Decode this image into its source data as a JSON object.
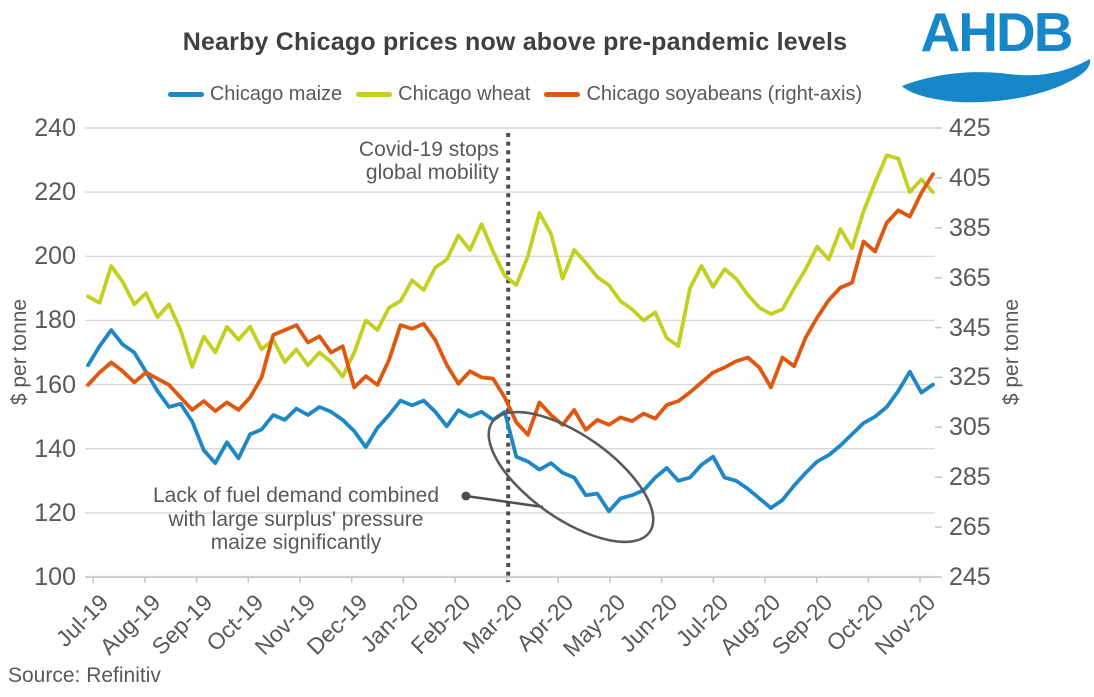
{
  "title": "Nearby Chicago prices now above pre-pandemic levels",
  "logo": {
    "text": "AHDB",
    "color": "#1787c8"
  },
  "legend": {
    "items": [
      {
        "label": "Chicago maize",
        "color": "#1e87c5"
      },
      {
        "label": "Chicago wheat",
        "color": "#c3d021"
      },
      {
        "label": "Chicago soyabeans (right-axis)",
        "color": "#e0570f"
      }
    ]
  },
  "axes": {
    "left": {
      "title": "$ per tonne",
      "ticks": [
        240,
        220,
        200,
        180,
        160,
        140,
        120,
        100
      ]
    },
    "right": {
      "title": "$ per tonne",
      "ticks": [
        425,
        405,
        385,
        365,
        345,
        325,
        305,
        285,
        265,
        245
      ]
    },
    "x": {
      "labels": [
        "Jul-19",
        "Aug-19",
        "Sep-19",
        "Oct-19",
        "Nov-19",
        "Dec-19",
        "Jan-20",
        "Feb-20",
        "Mar-20",
        "Apr-20",
        "May-20",
        "Jun-20",
        "Jul-20",
        "Aug-20",
        "Sep-20",
        "Oct-20",
        "Nov-20"
      ]
    }
  },
  "annotations": {
    "covid": {
      "line1": "Covid-19 stops",
      "line2": "global mobility"
    },
    "fuel": {
      "line1": "Lack of fuel demand combined",
      "line2": "with large surplus' pressure",
      "line3": "maize significantly"
    }
  },
  "source": "Source: Refinitiv",
  "chart_data": {
    "type": "line",
    "title": "Nearby Chicago prices now above pre-pandemic levels",
    "x_unit": "weekly observations",
    "x_range": [
      "Jul-19",
      "Nov-20"
    ],
    "left_axis": {
      "label": "$ per tonne",
      "min": 100,
      "max": 240,
      "tick_step": 20
    },
    "right_axis": {
      "label": "$ per tonne",
      "min": 245,
      "max": 425,
      "tick_step": 20
    },
    "grid": "horizontal",
    "legend_position": "top",
    "covid_line_week": 36.3,
    "series": [
      {
        "name": "Chicago maize",
        "axis": "left",
        "color": "#1e87c5",
        "values": [
          166,
          172,
          177,
          172.5,
          170,
          164,
          158,
          153,
          154,
          148.5,
          139.5,
          135.5,
          142,
          137,
          144.5,
          146,
          150.5,
          149,
          152.5,
          150.5,
          153,
          151.5,
          149,
          145.5,
          140.5,
          146.5,
          150.5,
          155,
          153.5,
          155,
          151.5,
          147,
          152,
          150,
          151.5,
          149,
          151.5,
          137.5,
          136,
          133.5,
          135.5,
          132.5,
          131,
          125.5,
          126,
          120.5,
          124.5,
          125.5,
          127,
          131,
          134,
          130,
          131,
          135,
          137.5,
          131,
          130,
          127.5,
          124.5,
          121.5,
          124,
          128.5,
          132.5,
          136,
          138,
          141,
          144.5,
          148,
          150,
          153,
          158,
          164,
          157.5,
          160
        ]
      },
      {
        "name": "Chicago wheat",
        "axis": "left",
        "color": "#c3d021",
        "values": [
          187.5,
          185.5,
          197,
          192,
          185,
          188.5,
          181,
          185,
          177,
          165.5,
          175,
          170,
          178,
          174,
          178,
          171,
          174,
          167,
          171,
          166,
          170,
          167,
          162.5,
          170,
          180,
          177,
          184,
          186,
          192.5,
          189.5,
          196.5,
          199,
          206.5,
          202,
          210,
          201.5,
          194,
          191,
          200,
          213.5,
          207,
          193,
          202,
          198,
          193.5,
          191,
          186,
          183.5,
          180,
          182.5,
          174.5,
          172,
          190,
          197,
          190.5,
          196,
          193,
          188,
          184,
          182,
          183.5,
          190,
          196,
          203,
          199,
          208.5,
          202.5,
          214,
          223,
          231.5,
          230.5,
          220,
          224,
          220
        ]
      },
      {
        "name": "Chicago soyabeans",
        "axis": "right",
        "color": "#e0570f",
        "values": [
          322,
          327,
          331,
          327.5,
          323,
          327,
          324.5,
          322,
          317,
          312,
          315.5,
          311.5,
          315,
          312,
          317,
          325,
          342,
          344,
          346,
          339,
          341.5,
          335,
          337.5,
          321,
          325.5,
          322,
          332,
          346,
          344.5,
          346.5,
          340,
          330,
          322.5,
          327.5,
          325,
          324.5,
          317,
          307,
          302,
          315,
          310,
          306,
          312,
          304,
          308,
          306,
          309,
          307.5,
          310.5,
          308.5,
          314,
          315.5,
          319,
          323,
          327,
          329,
          331.5,
          333,
          329,
          321,
          333,
          329.5,
          341,
          349,
          356,
          361,
          363,
          379.5,
          375.5,
          387,
          392,
          389.5,
          399,
          406.5
        ]
      }
    ]
  }
}
